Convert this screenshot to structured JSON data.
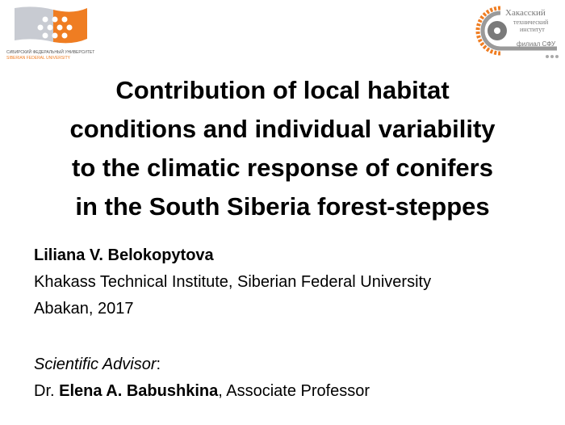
{
  "logos": {
    "left": {
      "text_ru": "СИБИРСКИЙ ФЕДЕРАЛЬНЫЙ УНИВЕРСИТЕТ",
      "text_en": "SIBERIAN FEDERAL UNIVERSITY",
      "accent": "#ef7d22",
      "gray": "#c8cbd2"
    },
    "right": {
      "line1": "Хакасский",
      "line2": "технический",
      "line3": "институт",
      "line4": "филиал СФУ",
      "accent": "#ef7d22",
      "gray": "#7a7a7a"
    }
  },
  "title": {
    "lines": [
      "Contribution of local habitat",
      "conditions and individual variability",
      "to the climatic response of conifers",
      "in the South Siberia forest-steppes"
    ]
  },
  "author": {
    "name": "Liliana V. Belokopytova",
    "affiliation": "Khakass Technical Institute, Siberian Federal University",
    "place_year": "Abakan, 2017"
  },
  "advisor": {
    "label": "Scientific Advisor",
    "colon": ":",
    "prefix": "Dr. ",
    "name": "Elena A. Babushkina",
    "position": ", Associate Professor"
  }
}
